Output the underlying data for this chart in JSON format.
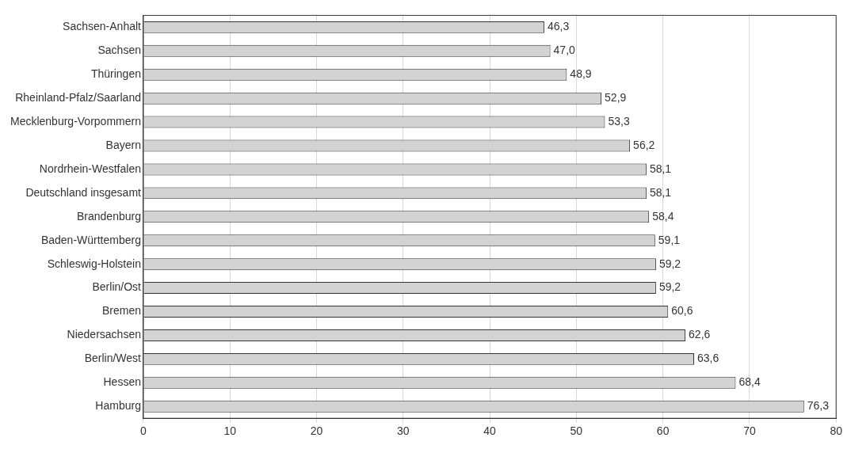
{
  "chart_data": {
    "type": "bar",
    "orientation": "horizontal",
    "categories": [
      "Sachsen-Anhalt",
      "Sachsen",
      "Thüringen",
      "Rheinland-Pfalz/Saarland",
      "Mecklenburg-Vorpommern",
      "Bayern",
      "Nordrhein-Westfalen",
      "Deutschland insgesamt",
      "Brandenburg",
      "Baden-Württemberg",
      "Schleswig-Holstein",
      "Berlin/Ost",
      "Bremen",
      "Niedersachsen",
      "Berlin/West",
      "Hessen",
      "Hamburg"
    ],
    "values": [
      46.3,
      47.0,
      48.9,
      52.9,
      53.3,
      56.2,
      58.1,
      58.1,
      58.4,
      59.1,
      59.2,
      59.2,
      60.6,
      62.6,
      63.6,
      68.4,
      76.3
    ],
    "value_labels": [
      "46,3",
      "47,0",
      "48,9",
      "52,9",
      "53,3",
      "56,2",
      "58,1",
      "58,1",
      "58,4",
      "59,1",
      "59,2",
      "59,2",
      "60,6",
      "62,6",
      "63,6",
      "68,4",
      "76,3"
    ],
    "color": "#d3d3d3",
    "xlim": [
      0,
      80
    ],
    "xticks": [
      0,
      10,
      20,
      30,
      40,
      50,
      60,
      70,
      80
    ],
    "grid": "x",
    "legend": false
  }
}
